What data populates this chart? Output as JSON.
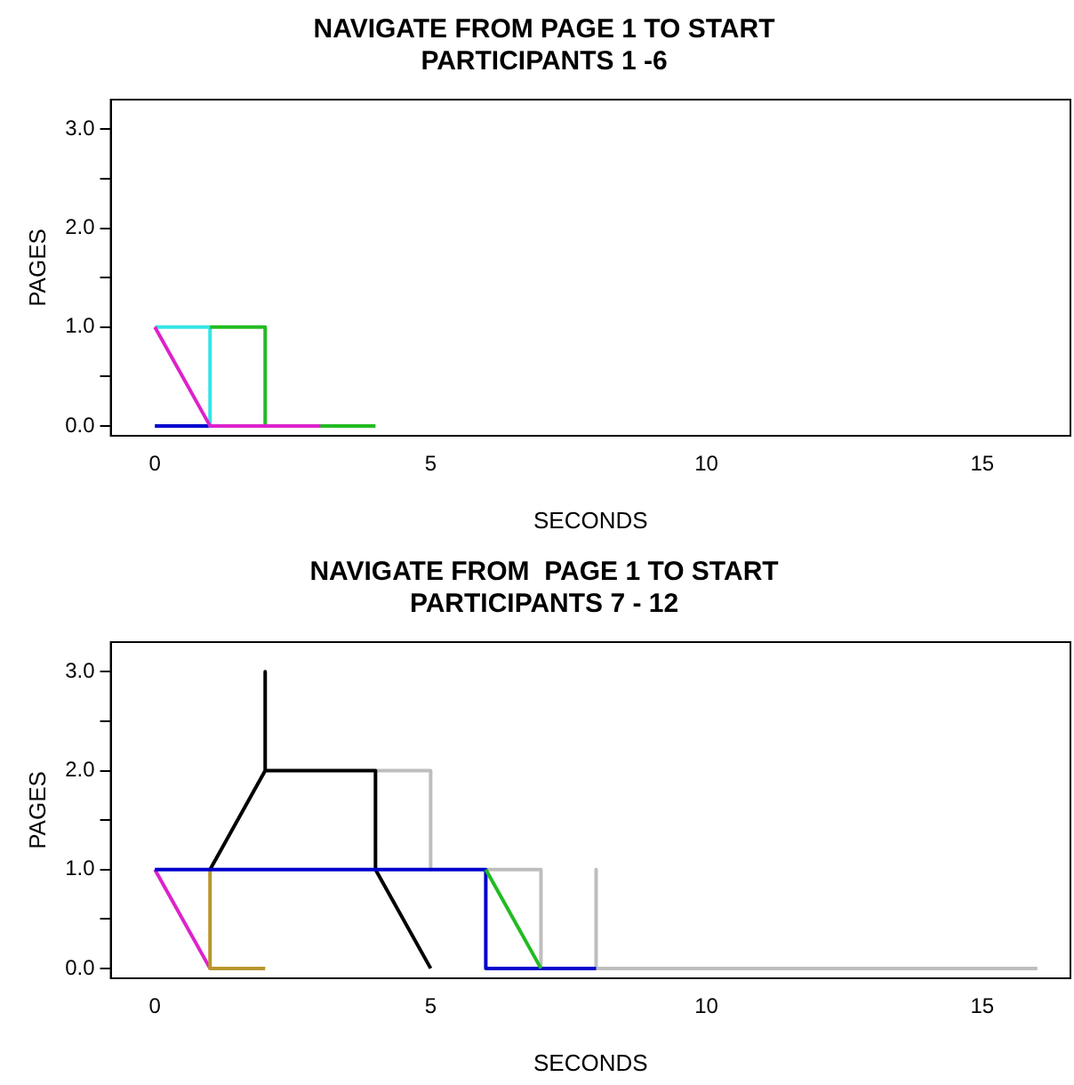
{
  "chart_data": [
    {
      "type": "line",
      "title": "NAVIGATE FROM PAGE 1 TO START\nPARTICIPANTS 1 -6",
      "xlabel": "SECONDS",
      "ylabel": "PAGES",
      "xlim": [
        -0.8,
        16.6
      ],
      "xticks": [
        0,
        5,
        10,
        15
      ],
      "ylim": [
        -0.1,
        3.3
      ],
      "yticks": [
        {
          "value": 0,
          "label": "0.0"
        },
        {
          "value": 0.5,
          "label": null
        },
        {
          "value": 1,
          "label": "1.0"
        },
        {
          "value": 1.5,
          "label": null
        },
        {
          "value": 2,
          "label": "2.0"
        },
        {
          "value": 2.5,
          "label": null
        },
        {
          "value": 3,
          "label": "3.0"
        }
      ],
      "grid": false,
      "legend": false,
      "marker": "none",
      "line_style": "solid",
      "series": [
        {
          "color": "#0000cc",
          "x": [
            0,
            1
          ],
          "values": [
            0,
            0
          ]
        },
        {
          "color": "#33e5e5",
          "x": [
            0,
            1,
            1
          ],
          "values": [
            1,
            1,
            0
          ]
        },
        {
          "color": "#22bb22",
          "x": [
            1,
            2,
            2,
            4
          ],
          "values": [
            1,
            1,
            0,
            0
          ]
        },
        {
          "color": "#dd22cc",
          "x": [
            0,
            1,
            3
          ],
          "values": [
            1,
            0,
            0
          ]
        }
      ]
    },
    {
      "type": "line",
      "title": "NAVIGATE FROM  PAGE 1 TO START\nPARTICIPANTS 7 - 12",
      "xlabel": "SECONDS",
      "ylabel": "PAGES",
      "xlim": [
        -0.8,
        16.6
      ],
      "xticks": [
        0,
        5,
        10,
        15
      ],
      "ylim": [
        -0.1,
        3.3
      ],
      "yticks": [
        {
          "value": 0,
          "label": "0.0"
        },
        {
          "value": 0.5,
          "label": null
        },
        {
          "value": 1,
          "label": "1.0"
        },
        {
          "value": 1.5,
          "label": null
        },
        {
          "value": 2,
          "label": "2.0"
        },
        {
          "value": 2.5,
          "label": null
        },
        {
          "value": 3,
          "label": "3.0"
        }
      ],
      "grid": false,
      "legend": false,
      "marker": "none",
      "line_style": "solid",
      "series": [
        {
          "color": "#bebebe",
          "x": [
            4,
            5,
            5
          ],
          "values": [
            2,
            2,
            1
          ]
        },
        {
          "color": "#bebebe",
          "x": [
            6,
            7,
            7
          ],
          "values": [
            1,
            1,
            0
          ]
        },
        {
          "color": "#bebebe",
          "x": [
            8,
            8,
            16
          ],
          "values": [
            1,
            0,
            0
          ]
        },
        {
          "color": "#dd22cc",
          "x": [
            0,
            1
          ],
          "values": [
            1,
            0
          ]
        },
        {
          "color": "#b8962e",
          "x": [
            1,
            1,
            2
          ],
          "values": [
            1,
            0,
            0
          ]
        },
        {
          "color": "#000000",
          "x": [
            1,
            2,
            2,
            2,
            4,
            4,
            5
          ],
          "values": [
            1,
            2,
            3,
            2,
            2,
            1,
            0
          ]
        },
        {
          "color": "#0000cc",
          "x": [
            0,
            6,
            6,
            8
          ],
          "values": [
            1,
            1,
            0,
            0
          ]
        },
        {
          "color": "#22bb22",
          "x": [
            6,
            7
          ],
          "values": [
            1,
            0
          ]
        }
      ]
    }
  ]
}
